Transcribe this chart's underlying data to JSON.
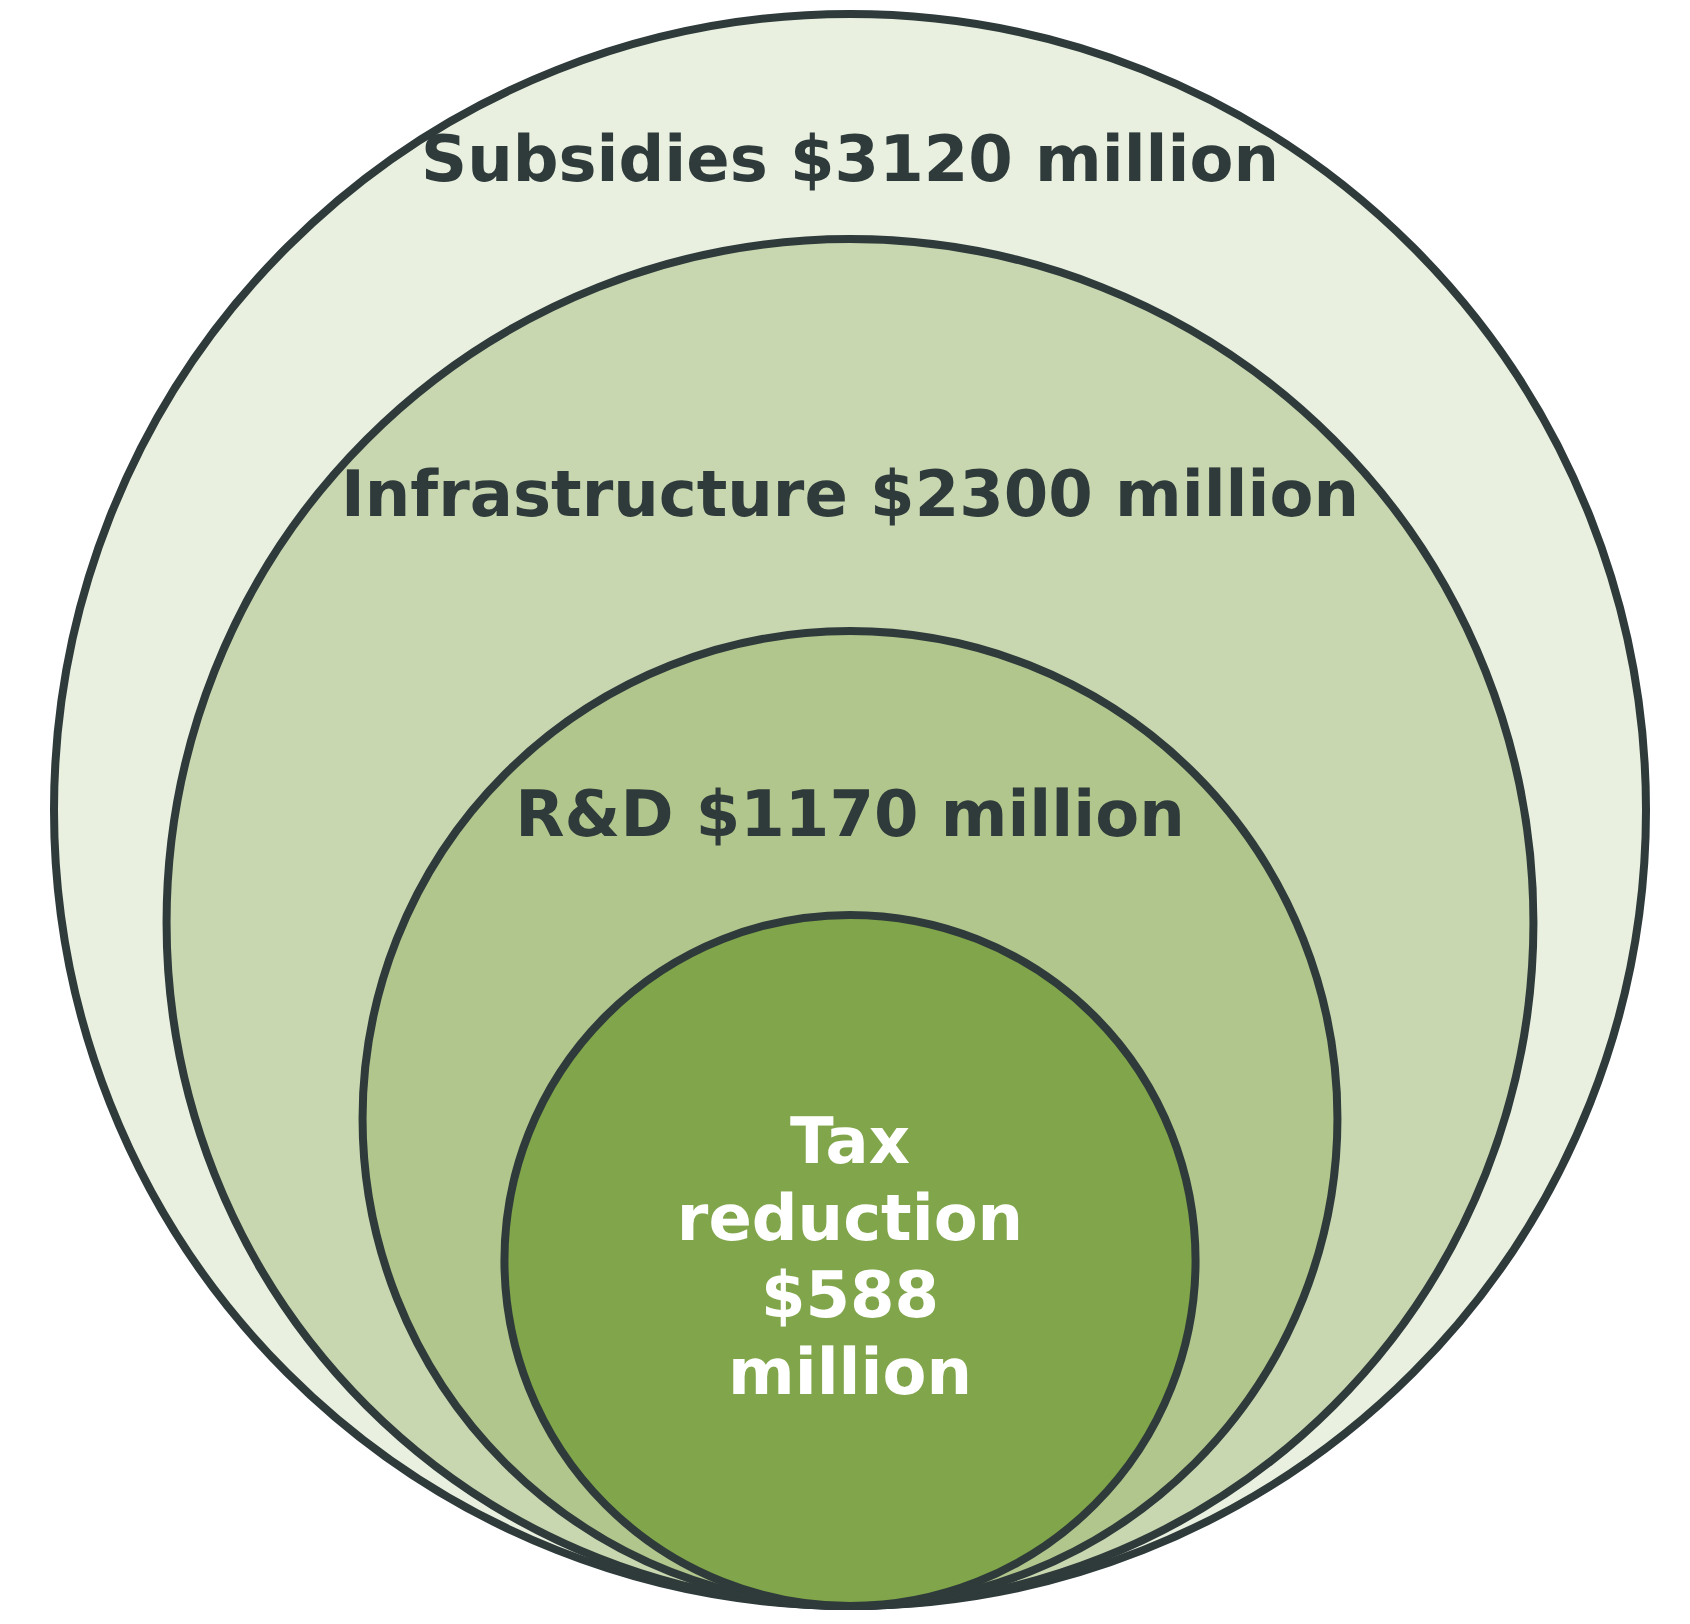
{
  "chart_data": {
    "type": "other",
    "categories": [
      "Subsidies",
      "Infrastructure",
      "R&D",
      "Tax reduction"
    ],
    "values": [
      3120,
      2300,
      1170,
      588
    ],
    "value_labels": [
      "$3120 million",
      "$2300 million",
      "$1170 million",
      "$588 million"
    ],
    "colors": [
      "#e9f0e0",
      "#c8d7b0",
      "#b0c68d",
      "#80a54a"
    ]
  }
}
